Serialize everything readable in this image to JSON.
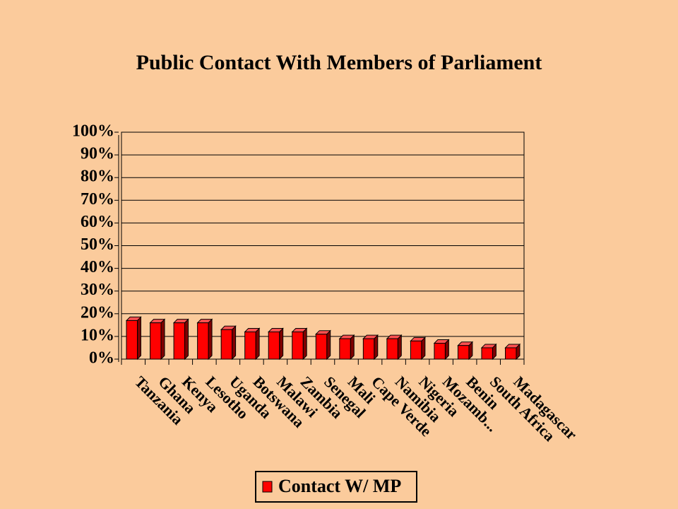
{
  "chart_data": {
    "type": "bar",
    "title": "Public Contact With Members of Parliament",
    "categories": [
      "Tanzania",
      "Ghana",
      "Kenya",
      "Lesotho",
      "Uganda",
      "Botswana",
      "Malawi",
      "Zambia",
      "Senegal",
      "Mali",
      "Cape Verde",
      "Namibia",
      "Nigeria",
      "Mozamb...",
      "Benin",
      "South Africa",
      "Madagascar"
    ],
    "series": [
      {
        "name": "Contact W/ MP",
        "color": "#ff0000",
        "values": [
          17,
          16,
          16,
          16,
          13,
          12,
          12,
          12,
          11,
          9,
          9,
          9,
          8,
          7,
          6,
          5,
          5
        ]
      }
    ],
    "ylim": [
      0,
      100
    ],
    "yticks": [
      {
        "value": 0,
        "label": "0%"
      },
      {
        "value": 10,
        "label": "10%"
      },
      {
        "value": 20,
        "label": "20%"
      },
      {
        "value": 30,
        "label": "30%"
      },
      {
        "value": 40,
        "label": "40%"
      },
      {
        "value": 50,
        "label": "50%"
      },
      {
        "value": 60,
        "label": "60%"
      },
      {
        "value": 70,
        "label": "70%"
      },
      {
        "value": 80,
        "label": "80%"
      },
      {
        "value": 90,
        "label": "90%"
      },
      {
        "value": 100,
        "label": "100%"
      }
    ],
    "grid": true,
    "legend": "bottom"
  }
}
